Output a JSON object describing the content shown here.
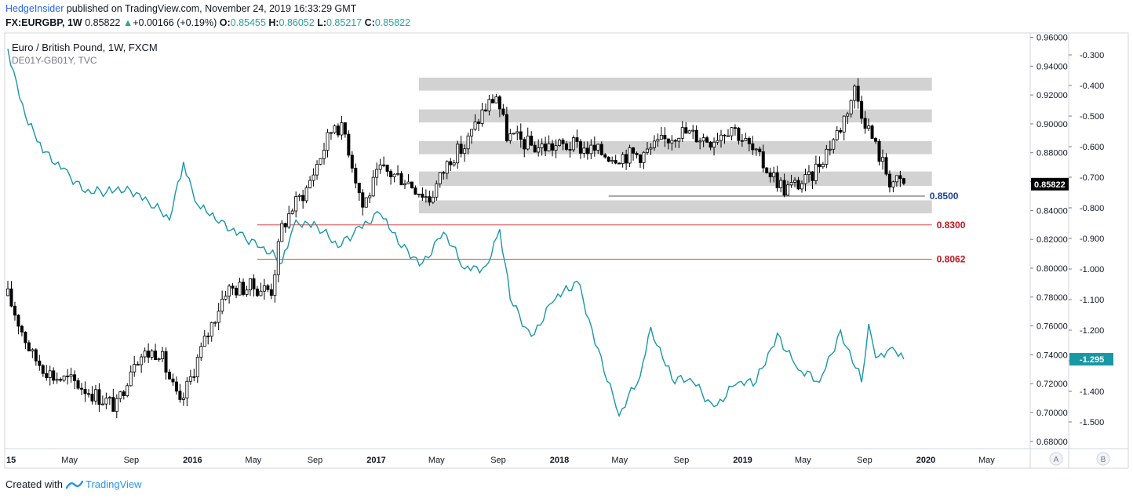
{
  "header": {
    "publisher": "HedgeInsider",
    "published_text": "published on TradingView.com, November 24, 2019 16:33:29 GMT",
    "symbol_line": "FX:EURGBP, 1W",
    "last": "0.85822",
    "change": "+0.00166 (+0.19%)",
    "o_label": "O:",
    "o": "0.85455",
    "h_label": "H:",
    "h": "0.86052",
    "l_label": "L:",
    "l": "0.85217",
    "c_label": "C:",
    "c": "0.85822"
  },
  "legend": {
    "main": "Euro / British Pound, 1W, FXCM",
    "overlay": "DE01Y-GB01Y, TVC"
  },
  "footer": {
    "created_with": "Created with",
    "brand": "TradingView"
  },
  "scale_buttons": [
    "A",
    "B"
  ],
  "colors": {
    "candle_up": "#ffffff",
    "candle_down": "#000000",
    "overlay_line": "#1897a5",
    "zone_fill": "#d2d2d2",
    "level_red": "#e0474c",
    "level_blue": "#2a5ca8",
    "red_label": "#c2161b",
    "blue_label": "#1b3f8f",
    "last_price_bg": "#000000",
    "overlay_badge_bg": "#1897a5"
  },
  "chart_data": {
    "type": "candlestick",
    "title": "Euro / British Pound, 1W, FXCM",
    "x_ticks": [
      "2015",
      "May",
      "Sep",
      "2016",
      "May",
      "Sep",
      "2017",
      "May",
      "Sep",
      "2018",
      "May",
      "Sep",
      "2019",
      "May",
      "Sep",
      "2020",
      "May"
    ],
    "x_tick_dates": [
      "2015-01-01",
      "2015-05-01",
      "2015-09-01",
      "2016-01-01",
      "2016-05-01",
      "2016-09-01",
      "2017-01-01",
      "2017-05-01",
      "2017-09-01",
      "2018-01-01",
      "2018-05-01",
      "2018-09-01",
      "2019-01-01",
      "2019-05-01",
      "2019-09-01",
      "2020-01-01",
      "2020-05-01"
    ],
    "price_axis": {
      "ticks": [
        "0.96000",
        "0.94000",
        "0.92000",
        "0.90000",
        "0.88000",
        "0.86000",
        "0.84000",
        "0.82000",
        "0.80000",
        "0.78000",
        "0.76000",
        "0.74000",
        "0.72000",
        "0.70000",
        "0.68000"
      ],
      "tick_values": [
        0.96,
        0.94,
        0.92,
        0.9,
        0.88,
        0.86,
        0.84,
        0.82,
        0.8,
        0.78,
        0.76,
        0.74,
        0.72,
        0.7,
        0.68
      ],
      "range": [
        0.675,
        0.963
      ],
      "last_price_label": "0.85822",
      "last_price": 0.85822
    },
    "overlay_axis": {
      "name": "DE01Y-GB01Y, TVC",
      "ticks": [
        "-0.300",
        "-0.400",
        "-0.500",
        "-0.600",
        "-0.700",
        "-0.800",
        "-0.900",
        "-1.000",
        "-1.100",
        "-1.200",
        "-1.300",
        "-1.400",
        "-1.500"
      ],
      "tick_values": [
        -0.3,
        -0.4,
        -0.5,
        -0.6,
        -0.7,
        -0.8,
        -0.9,
        -1.0,
        -1.1,
        -1.2,
        -1.3,
        -1.4,
        -1.5
      ],
      "last_value_label": "-1.295",
      "last_value": -1.295
    },
    "zones": [
      {
        "start": "2017-03-27",
        "end": "2020-01-13",
        "low": 0.923,
        "high": 0.932
      },
      {
        "start": "2017-03-27",
        "end": "2020-01-13",
        "low": 0.901,
        "high": 0.91
      },
      {
        "start": "2017-03-27",
        "end": "2020-01-13",
        "low": 0.879,
        "high": 0.888
      },
      {
        "start": "2017-03-27",
        "end": "2020-01-13",
        "low": 0.857,
        "high": 0.867
      },
      {
        "start": "2017-03-27",
        "end": "2020-01-13",
        "low": 0.838,
        "high": 0.847
      }
    ],
    "levels": [
      {
        "value": 0.85,
        "label": "0.8500",
        "start": "2018-04-09",
        "end": "2019-12-30",
        "color": "blue"
      },
      {
        "value": 0.83,
        "label": "0.8300",
        "start": "2016-05-09",
        "end": "2020-01-13",
        "color": "red"
      },
      {
        "value": 0.8062,
        "label": "0.8062",
        "start": "2016-05-09",
        "end": "2020-01-13",
        "color": "red"
      }
    ],
    "candles_anchor": {
      "anchors": [
        [
          "2014-12-29",
          0.781
        ],
        [
          "2015-02-16",
          0.739
        ],
        [
          "2015-03-30",
          0.725
        ],
        [
          "2015-05-11",
          0.721
        ],
        [
          "2015-06-22",
          0.712
        ],
        [
          "2015-08-03",
          0.704
        ],
        [
          "2015-09-07",
          0.738
        ],
        [
          "2015-10-26",
          0.743
        ],
        [
          "2015-12-07",
          0.704
        ],
        [
          "2016-01-11",
          0.737
        ],
        [
          "2016-03-07",
          0.785
        ],
        [
          "2016-04-25",
          0.787
        ],
        [
          "2016-06-06",
          0.785
        ],
        [
          "2016-06-27",
          0.828
        ],
        [
          "2016-07-18",
          0.842
        ],
        [
          "2016-08-15",
          0.855
        ],
        [
          "2016-10-10",
          0.901
        ],
        [
          "2016-10-31",
          0.893
        ],
        [
          "2016-12-05",
          0.843
        ],
        [
          "2017-01-09",
          0.868
        ],
        [
          "2017-02-27",
          0.862
        ],
        [
          "2017-04-17",
          0.848
        ],
        [
          "2017-05-29",
          0.877
        ],
        [
          "2017-06-26",
          0.884
        ],
        [
          "2017-07-31",
          0.908
        ],
        [
          "2017-08-28",
          0.92
        ],
        [
          "2017-09-18",
          0.892
        ],
        [
          "2017-11-13",
          0.884
        ],
        [
          "2018-01-29",
          0.885
        ],
        [
          "2018-04-16",
          0.878
        ],
        [
          "2018-06-18",
          0.879
        ],
        [
          "2018-08-27",
          0.895
        ],
        [
          "2018-10-29",
          0.889
        ],
        [
          "2018-12-10",
          0.899
        ],
        [
          "2019-02-11",
          0.872
        ],
        [
          "2019-03-25",
          0.855
        ],
        [
          "2019-05-13",
          0.861
        ],
        [
          "2019-07-15",
          0.898
        ],
        [
          "2019-08-12",
          0.924
        ],
        [
          "2019-08-26",
          0.909
        ],
        [
          "2019-09-23",
          0.884
        ],
        [
          "2019-10-21",
          0.861
        ],
        [
          "2019-11-18",
          0.858
        ]
      ],
      "note": "approximate weekly closes read from the chart"
    },
    "overlay_series": {
      "name": "DE01Y-GB01Y, TVC",
      "points": [
        [
          "2014-12-29",
          -0.28
        ],
        [
          "2015-02-02",
          -0.5
        ],
        [
          "2015-03-09",
          -0.62
        ],
        [
          "2015-04-20",
          -0.67
        ],
        [
          "2015-06-01",
          -0.75
        ],
        [
          "2015-07-13",
          -0.75
        ],
        [
          "2015-08-24",
          -0.73
        ],
        [
          "2015-10-05",
          -0.78
        ],
        [
          "2015-11-16",
          -0.84
        ],
        [
          "2015-12-14",
          -0.65
        ],
        [
          "2016-01-11",
          -0.79
        ],
        [
          "2016-02-22",
          -0.85
        ],
        [
          "2016-04-04",
          -0.88
        ],
        [
          "2016-05-16",
          -0.93
        ],
        [
          "2016-06-27",
          -0.98
        ],
        [
          "2016-07-25",
          -0.84
        ],
        [
          "2016-09-05",
          -0.86
        ],
        [
          "2016-10-17",
          -0.93
        ],
        [
          "2016-11-28",
          -0.86
        ],
        [
          "2017-01-09",
          -0.82
        ],
        [
          "2017-02-20",
          -0.93
        ],
        [
          "2017-04-03",
          -0.98
        ],
        [
          "2017-05-15",
          -0.88
        ],
        [
          "2017-06-26",
          -1.0
        ],
        [
          "2017-08-07",
          -0.99
        ],
        [
          "2017-09-04",
          -0.87
        ],
        [
          "2017-09-25",
          -1.1
        ],
        [
          "2017-11-06",
          -1.22
        ],
        [
          "2017-12-18",
          -1.11
        ],
        [
          "2018-02-05",
          -1.04
        ],
        [
          "2018-03-19",
          -1.26
        ],
        [
          "2018-04-30",
          -1.48
        ],
        [
          "2018-06-11",
          -1.35
        ],
        [
          "2018-07-02",
          -1.19
        ],
        [
          "2018-08-13",
          -1.36
        ],
        [
          "2018-09-24",
          -1.37
        ],
        [
          "2018-11-05",
          -1.45
        ],
        [
          "2018-12-17",
          -1.38
        ],
        [
          "2019-01-28",
          -1.37
        ],
        [
          "2019-03-11",
          -1.21
        ],
        [
          "2019-04-22",
          -1.33
        ],
        [
          "2019-06-03",
          -1.37
        ],
        [
          "2019-07-15",
          -1.2
        ],
        [
          "2019-08-26",
          -1.37
        ],
        [
          "2019-09-09",
          -1.18
        ],
        [
          "2019-09-23",
          -1.29
        ],
        [
          "2019-10-21",
          -1.26
        ],
        [
          "2019-11-18",
          -1.295
        ]
      ]
    }
  }
}
